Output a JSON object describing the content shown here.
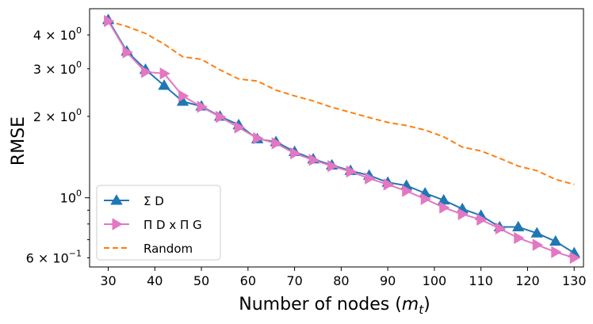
{
  "chart_data": {
    "type": "line",
    "title": "",
    "xlabel": "Number of nodes (",
    "xlabel_math": "m",
    "xlabel_sub": "t",
    "xlabel_close": ")",
    "ylabel": "RMSE",
    "yscale": "log",
    "xlim": [
      26,
      132
    ],
    "ylim": [
      0.555,
      5.0
    ],
    "x_ticks": [
      30,
      40,
      50,
      60,
      70,
      80,
      90,
      100,
      110,
      120,
      130
    ],
    "y_ticks": [
      {
        "value": 4,
        "mantissa": "4 × 10",
        "exp": "0"
      },
      {
        "value": 3,
        "mantissa": "3 × 10",
        "exp": "0"
      },
      {
        "value": 2,
        "mantissa": "2 × 10",
        "exp": "0"
      },
      {
        "value": 1,
        "mantissa": "10",
        "exp": "0"
      },
      {
        "value": 0.6,
        "mantissa": "6 × 10",
        "exp": "−1"
      }
    ],
    "legend_position": "lower-left",
    "series": [
      {
        "name": "Σ D",
        "color": "#1f77b4",
        "marker": "triangle-up",
        "dash": "solid",
        "x": [
          30,
          34,
          38,
          42,
          46,
          50,
          54,
          58,
          62,
          66,
          70,
          74,
          78,
          82,
          86,
          90,
          94,
          98,
          102,
          106,
          110,
          114,
          118,
          122,
          126,
          130
        ],
        "y": [
          4.55,
          3.48,
          2.98,
          2.6,
          2.27,
          2.18,
          2.0,
          1.86,
          1.65,
          1.61,
          1.48,
          1.39,
          1.32,
          1.26,
          1.21,
          1.14,
          1.11,
          1.04,
          0.98,
          0.91,
          0.86,
          0.78,
          0.78,
          0.74,
          0.69,
          0.625
        ]
      },
      {
        "name": "Π D x Π G",
        "color": "#e377c2",
        "marker": "triangle-right",
        "dash": "solid",
        "x": [
          30,
          34,
          38,
          42,
          46,
          50,
          54,
          58,
          62,
          66,
          70,
          74,
          78,
          82,
          86,
          90,
          94,
          98,
          102,
          106,
          110,
          114,
          118,
          122,
          126,
          130
        ],
        "y": [
          4.5,
          3.45,
          2.92,
          2.88,
          2.38,
          2.17,
          1.99,
          1.82,
          1.66,
          1.59,
          1.46,
          1.38,
          1.31,
          1.25,
          1.18,
          1.12,
          1.06,
          0.99,
          0.92,
          0.87,
          0.83,
          0.77,
          0.71,
          0.67,
          0.63,
          0.6
        ]
      },
      {
        "name": "Random",
        "color": "#ff7f0e",
        "marker": "none",
        "dash": "dashed",
        "x": [
          30,
          34,
          38,
          42,
          46,
          50,
          54,
          58,
          62,
          66,
          70,
          74,
          78,
          82,
          86,
          90,
          94,
          98,
          102,
          106,
          110,
          114,
          118,
          122,
          126,
          130
        ],
        "y": [
          4.5,
          4.3,
          4.05,
          3.7,
          3.32,
          3.25,
          2.97,
          2.75,
          2.7,
          2.5,
          2.38,
          2.28,
          2.16,
          2.07,
          1.98,
          1.9,
          1.85,
          1.78,
          1.68,
          1.54,
          1.49,
          1.4,
          1.31,
          1.26,
          1.17,
          1.12
        ]
      }
    ]
  }
}
